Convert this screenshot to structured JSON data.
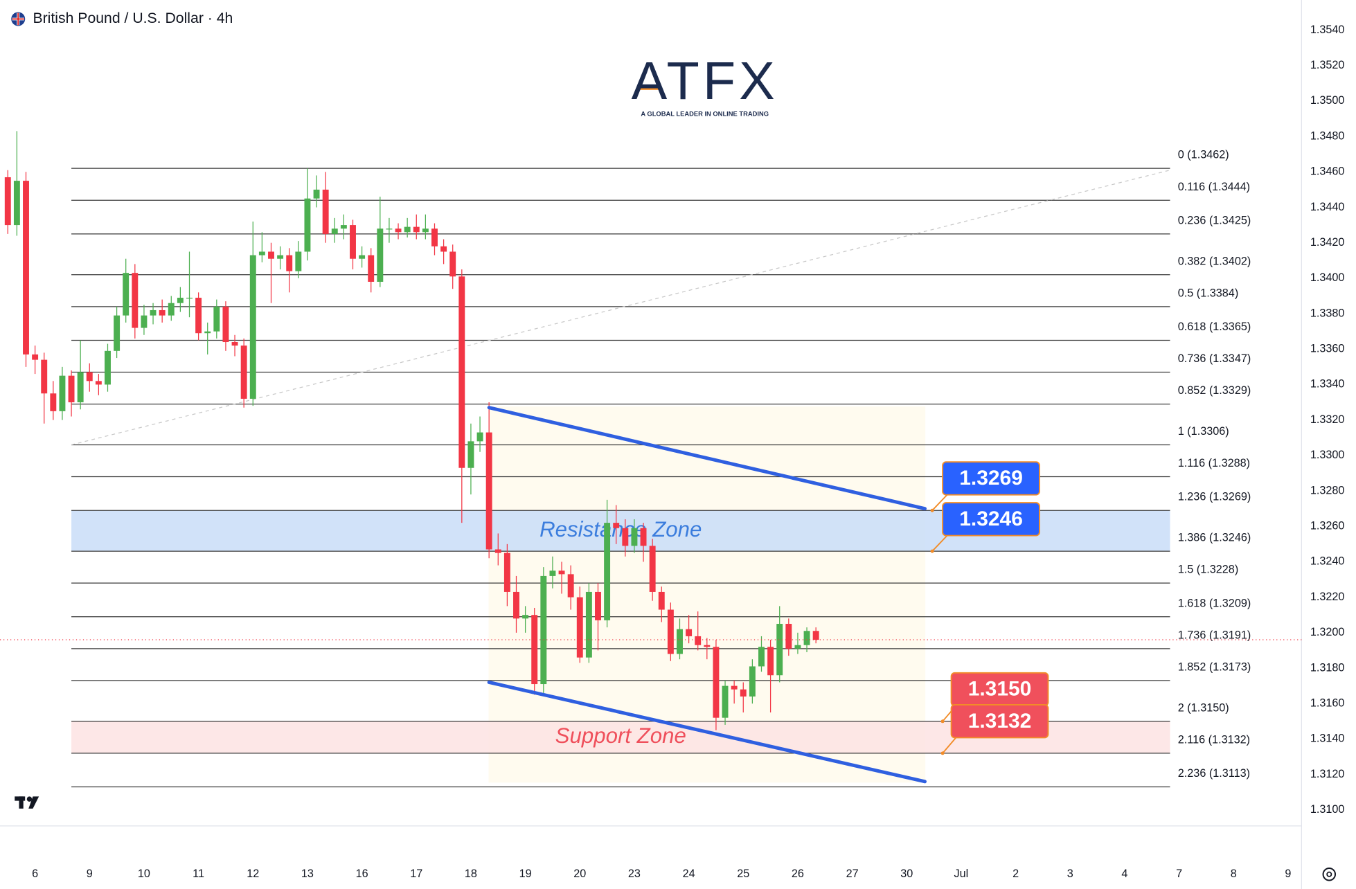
{
  "header": {
    "title": "British Pound / U.S. Dollar · 4h"
  },
  "logo": {
    "name": "ATFX",
    "tagline": "A GLOBAL LEADER IN ONLINE TRADING"
  },
  "chart_data": {
    "type": "candlestick",
    "up_color": "#4caf50",
    "down_color": "#f23645",
    "ohlc": [
      [
        1.3457,
        1.3461,
        1.3425,
        1.343
      ],
      [
        1.343,
        1.3483,
        1.3424,
        1.3455
      ],
      [
        1.3455,
        1.346,
        1.335,
        1.3357
      ],
      [
        1.3357,
        1.3362,
        1.3346,
        1.3354
      ],
      [
        1.3354,
        1.3358,
        1.3318,
        1.3335
      ],
      [
        1.3335,
        1.3342,
        1.332,
        1.3325
      ],
      [
        1.3325,
        1.335,
        1.332,
        1.3345
      ],
      [
        1.3345,
        1.3348,
        1.3322,
        1.333
      ],
      [
        1.333,
        1.3365,
        1.3326,
        1.3347
      ],
      [
        1.3347,
        1.3352,
        1.3336,
        1.3342
      ],
      [
        1.3342,
        1.3346,
        1.3334,
        1.334
      ],
      [
        1.334,
        1.3363,
        1.3336,
        1.3359
      ],
      [
        1.3359,
        1.3384,
        1.3355,
        1.3379
      ],
      [
        1.3379,
        1.3411,
        1.3375,
        1.3403
      ],
      [
        1.3403,
        1.3408,
        1.3366,
        1.3372
      ],
      [
        1.3372,
        1.3385,
        1.3368,
        1.3379
      ],
      [
        1.3379,
        1.3386,
        1.3374,
        1.3382
      ],
      [
        1.3382,
        1.3388,
        1.3375,
        1.3379
      ],
      [
        1.3379,
        1.339,
        1.3376,
        1.3386
      ],
      [
        1.3386,
        1.3395,
        1.3381,
        1.3389
      ],
      [
        1.3389,
        1.3415,
        1.3378,
        1.3389
      ],
      [
        1.3389,
        1.3392,
        1.3365,
        1.3369
      ],
      [
        1.3369,
        1.3375,
        1.3357,
        1.337
      ],
      [
        1.337,
        1.3388,
        1.3366,
        1.3384
      ],
      [
        1.3384,
        1.3387,
        1.3359,
        1.3364
      ],
      [
        1.3364,
        1.3368,
        1.3356,
        1.3362
      ],
      [
        1.3362,
        1.3366,
        1.3327,
        1.3332
      ],
      [
        1.3332,
        1.3432,
        1.3328,
        1.3413
      ],
      [
        1.3413,
        1.3426,
        1.3409,
        1.3415
      ],
      [
        1.3415,
        1.342,
        1.3386,
        1.3411
      ],
      [
        1.3411,
        1.3418,
        1.3405,
        1.3413
      ],
      [
        1.3413,
        1.3417,
        1.3392,
        1.3404
      ],
      [
        1.3404,
        1.3421,
        1.34,
        1.3415
      ],
      [
        1.3415,
        1.3462,
        1.341,
        1.3445
      ],
      [
        1.3445,
        1.3458,
        1.344,
        1.345
      ],
      [
        1.345,
        1.346,
        1.342,
        1.3425
      ],
      [
        1.3425,
        1.3434,
        1.342,
        1.3428
      ],
      [
        1.3428,
        1.3436,
        1.3422,
        1.343
      ],
      [
        1.343,
        1.3433,
        1.3405,
        1.3411
      ],
      [
        1.3411,
        1.3418,
        1.3406,
        1.3413
      ],
      [
        1.3413,
        1.3417,
        1.3392,
        1.3398
      ],
      [
        1.3398,
        1.3446,
        1.3395,
        1.3428
      ],
      [
        1.3428,
        1.3434,
        1.342,
        1.3428
      ],
      [
        1.3428,
        1.3431,
        1.3422,
        1.3426
      ],
      [
        1.3426,
        1.3434,
        1.3423,
        1.3429
      ],
      [
        1.3429,
        1.3436,
        1.3422,
        1.3426
      ],
      [
        1.3426,
        1.3436,
        1.3422,
        1.3428
      ],
      [
        1.3428,
        1.3431,
        1.3413,
        1.3418
      ],
      [
        1.3418,
        1.3422,
        1.3408,
        1.3415
      ],
      [
        1.3415,
        1.3419,
        1.3394,
        1.3401
      ],
      [
        1.3401,
        1.3405,
        1.3262,
        1.3293
      ],
      [
        1.3293,
        1.3318,
        1.3278,
        1.3308
      ],
      [
        1.3308,
        1.3322,
        1.3302,
        1.3313
      ],
      [
        1.3313,
        1.333,
        1.3242,
        1.3247
      ],
      [
        1.3247,
        1.3256,
        1.3238,
        1.3245
      ],
      [
        1.3245,
        1.325,
        1.3215,
        1.3223
      ],
      [
        1.3223,
        1.3232,
        1.32,
        1.3208
      ],
      [
        1.3208,
        1.3215,
        1.32,
        1.321
      ],
      [
        1.321,
        1.3214,
        1.3165,
        1.3171
      ],
      [
        1.3171,
        1.3237,
        1.3166,
        1.3232
      ],
      [
        1.3232,
        1.3243,
        1.3225,
        1.3235
      ],
      [
        1.3235,
        1.324,
        1.3222,
        1.3233
      ],
      [
        1.3233,
        1.3238,
        1.3213,
        1.322
      ],
      [
        1.322,
        1.3226,
        1.3183,
        1.3186
      ],
      [
        1.3186,
        1.3228,
        1.3183,
        1.3223
      ],
      [
        1.3223,
        1.3228,
        1.319,
        1.3207
      ],
      [
        1.3207,
        1.3275,
        1.3203,
        1.3262
      ],
      [
        1.3262,
        1.3272,
        1.325,
        1.3259
      ],
      [
        1.3259,
        1.3264,
        1.3243,
        1.3249
      ],
      [
        1.3249,
        1.3264,
        1.3245,
        1.3259
      ],
      [
        1.3259,
        1.3262,
        1.324,
        1.3249
      ],
      [
        1.3249,
        1.3253,
        1.3218,
        1.3223
      ],
      [
        1.3223,
        1.3226,
        1.3206,
        1.3213
      ],
      [
        1.3213,
        1.3217,
        1.3184,
        1.3188
      ],
      [
        1.3188,
        1.3208,
        1.3185,
        1.3202
      ],
      [
        1.3202,
        1.321,
        1.3194,
        1.3198
      ],
      [
        1.3198,
        1.3212,
        1.319,
        1.3193
      ],
      [
        1.3193,
        1.3197,
        1.3185,
        1.3192
      ],
      [
        1.3192,
        1.3196,
        1.3145,
        1.3152
      ],
      [
        1.3152,
        1.3173,
        1.3148,
        1.317
      ],
      [
        1.317,
        1.3173,
        1.316,
        1.3168
      ],
      [
        1.3168,
        1.3172,
        1.3155,
        1.3164
      ],
      [
        1.3164,
        1.3185,
        1.316,
        1.3181
      ],
      [
        1.3181,
        1.3198,
        1.3178,
        1.3192
      ],
      [
        1.3192,
        1.3196,
        1.3155,
        1.3176
      ],
      [
        1.3176,
        1.3215,
        1.3172,
        1.3205
      ],
      [
        1.3205,
        1.3208,
        1.3187,
        1.3191
      ],
      [
        1.3191,
        1.32,
        1.3188,
        1.3193
      ],
      [
        1.3193,
        1.3203,
        1.3189,
        1.3201
      ],
      [
        1.3201,
        1.3203,
        1.3194,
        1.3196
      ]
    ],
    "xlim": [
      -0.86,
      142.48
    ],
    "xticks": [
      {
        "value": 3,
        "label": "6"
      },
      {
        "value": 9,
        "label": "9"
      },
      {
        "value": 15,
        "label": "10"
      },
      {
        "value": 21,
        "label": "11"
      },
      {
        "value": 27,
        "label": "12"
      },
      {
        "value": 33,
        "label": "13"
      },
      {
        "value": 39,
        "label": "16"
      },
      {
        "value": 45,
        "label": "17"
      },
      {
        "value": 51,
        "label": "18"
      },
      {
        "value": 57,
        "label": "19"
      },
      {
        "value": 63,
        "label": "20"
      },
      {
        "value": 69,
        "label": "23"
      },
      {
        "value": 75,
        "label": "24"
      },
      {
        "value": 81,
        "label": "25"
      },
      {
        "value": 87,
        "label": "26"
      },
      {
        "value": 93,
        "label": "27"
      },
      {
        "value": 99,
        "label": "30"
      },
      {
        "value": 105,
        "label": "Jul"
      },
      {
        "value": 111,
        "label": "2"
      },
      {
        "value": 117,
        "label": "3"
      },
      {
        "value": 123,
        "label": "4"
      },
      {
        "value": 129,
        "label": "7"
      },
      {
        "value": 135,
        "label": "8"
      },
      {
        "value": 141,
        "label": "9"
      }
    ],
    "ylim": [
      1.3091,
      1.3557
    ],
    "yticks": [
      {
        "value": 1.31,
        "label": "1.3100"
      },
      {
        "value": 1.312,
        "label": "1.3120"
      },
      {
        "value": 1.314,
        "label": "1.3140"
      },
      {
        "value": 1.316,
        "label": "1.3160"
      },
      {
        "value": 1.318,
        "label": "1.3180"
      },
      {
        "value": 1.32,
        "label": "1.3200"
      },
      {
        "value": 1.322,
        "label": "1.3220"
      },
      {
        "value": 1.324,
        "label": "1.3240"
      },
      {
        "value": 1.326,
        "label": "1.3260"
      },
      {
        "value": 1.328,
        "label": "1.3280"
      },
      {
        "value": 1.33,
        "label": "1.3300"
      },
      {
        "value": 1.332,
        "label": "1.3320"
      },
      {
        "value": 1.334,
        "label": "1.3340"
      },
      {
        "value": 1.336,
        "label": "1.3360"
      },
      {
        "value": 1.338,
        "label": "1.3380"
      },
      {
        "value": 1.34,
        "label": "1.3400"
      },
      {
        "value": 1.342,
        "label": "1.3420"
      },
      {
        "value": 1.344,
        "label": "1.3440"
      },
      {
        "value": 1.346,
        "label": "1.3460"
      },
      {
        "value": 1.348,
        "label": "1.3480"
      },
      {
        "value": 1.35,
        "label": "1.3500"
      },
      {
        "value": 1.352,
        "label": "1.3520"
      },
      {
        "value": 1.354,
        "label": "1.3540"
      }
    ],
    "fib_levels": [
      {
        "value": 1.3462,
        "label": "0 (1.3462)"
      },
      {
        "value": 1.3444,
        "label": "0.116 (1.3444)"
      },
      {
        "value": 1.3425,
        "label": "0.236 (1.3425)"
      },
      {
        "value": 1.3402,
        "label": "0.382 (1.3402)"
      },
      {
        "value": 1.3384,
        "label": "0.5 (1.3384)"
      },
      {
        "value": 1.3365,
        "label": "0.618 (1.3365)"
      },
      {
        "value": 1.3347,
        "label": "0.736 (1.3347)"
      },
      {
        "value": 1.3329,
        "label": "0.852 (1.3329)"
      },
      {
        "value": 1.3306,
        "label": "1 (1.3306)"
      },
      {
        "value": 1.3288,
        "label": "1.116 (1.3288)"
      },
      {
        "value": 1.3269,
        "label": "1.236 (1.3269)"
      },
      {
        "value": 1.3246,
        "label": "1.386 (1.3246)"
      },
      {
        "value": 1.3228,
        "label": "1.5 (1.3228)"
      },
      {
        "value": 1.3209,
        "label": "1.618 (1.3209)"
      },
      {
        "value": 1.3191,
        "label": "1.736 (1.3191)"
      },
      {
        "value": 1.3173,
        "label": "1.852 (1.3173)"
      },
      {
        "value": 1.315,
        "label": "2 (1.3150)"
      },
      {
        "value": 1.3132,
        "label": "2.116 (1.3132)"
      },
      {
        "value": 1.3113,
        "label": "2.236 (1.3113)"
      }
    ],
    "zones": [
      {
        "name": "Resistance Zone",
        "from": 1.3246,
        "to": 1.3269,
        "color": "#c9ddf8",
        "text_color": "#3b7ddd"
      },
      {
        "name": "Support Zone",
        "from": 1.3132,
        "to": 1.315,
        "color": "#fde3e3",
        "text_color": "#ef4f5b"
      }
    ],
    "price_tags": [
      {
        "value": 1.3269,
        "label": "1.3269",
        "color": "#2962ff"
      },
      {
        "value": 1.3246,
        "label": "1.3246",
        "color": "#2962ff"
      },
      {
        "value": 1.315,
        "label": "1.3150",
        "color": "#f0505c"
      },
      {
        "value": 1.3132,
        "label": "1.3132",
        "color": "#f0505c"
      }
    ],
    "channel_color": "#2f5fe0",
    "channel": [
      {
        "x": [
          53,
          101
        ],
        "y": [
          1.3327,
          1.327
        ]
      },
      {
        "x": [
          53,
          101
        ],
        "y": [
          1.3172,
          1.3116
        ]
      }
    ],
    "trend_line": {
      "x": [
        7,
        128
      ],
      "y": [
        1.3306,
        1.3461
      ]
    }
  }
}
